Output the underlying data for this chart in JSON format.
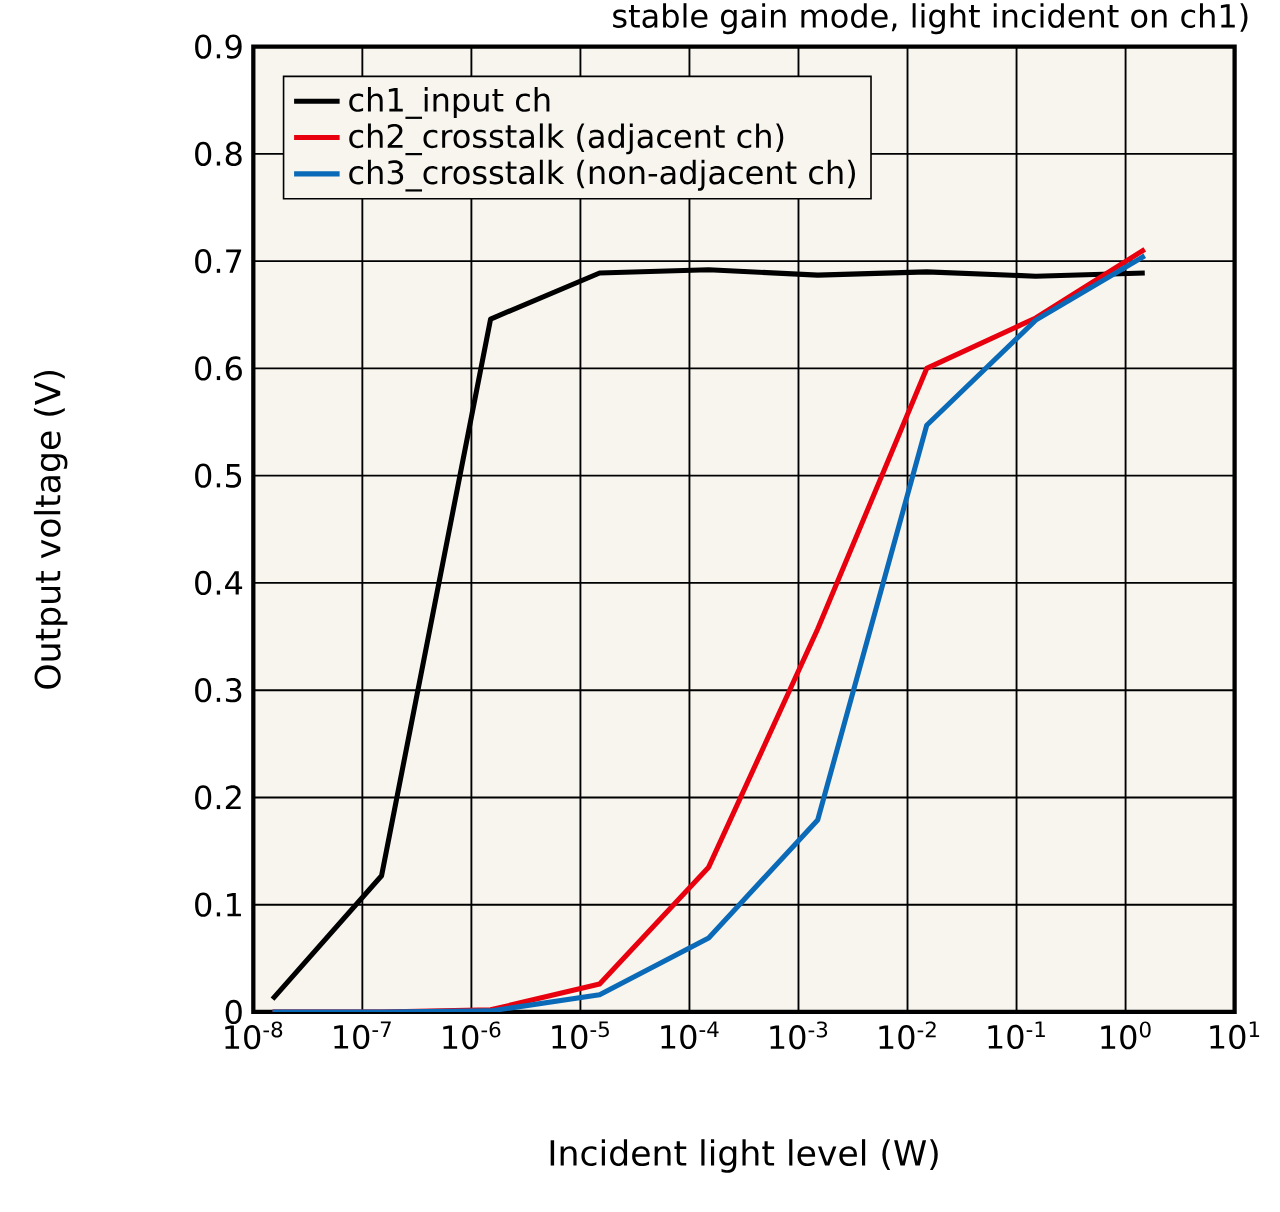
{
  "chart_data": {
    "type": "line",
    "title": "stable gain mode, light incident on ch1)",
    "xlabel": "Incident light level (W)",
    "ylabel": "Output voltage (V)",
    "log": "x",
    "grid": true,
    "legend": "top left",
    "marker": "none",
    "line_style": "solid",
    "xlim": [
      1e-08,
      10
    ],
    "ylim": [
      0,
      0.9
    ],
    "xticks": [
      {
        "value": 1e-08,
        "label": "10$^{-8}$"
      },
      {
        "value": 1e-07,
        "label": "10$^{-7}$"
      },
      {
        "value": 1e-06,
        "label": "10$^{-6}$"
      },
      {
        "value": 1e-05,
        "label": "10$^{-5}$"
      },
      {
        "value": 0.0001,
        "label": "10$^{-4}$"
      },
      {
        "value": 0.001,
        "label": "10$^{-3}$"
      },
      {
        "value": 0.01,
        "label": "10$^{-2}$"
      },
      {
        "value": 0.1,
        "label": "10$^{-1}$"
      },
      {
        "value": 1,
        "label": "10$^{0}$"
      },
      {
        "value": 10,
        "label": "10$^{1}$"
      }
    ],
    "yticks": [
      0,
      0.1,
      0.2,
      0.3,
      0.4,
      0.5,
      0.6,
      0.7,
      0.8,
      0.9
    ],
    "x": [
      1.5e-08,
      1.5e-07,
      1.5e-06,
      1.5e-05,
      0.00015,
      0.0015,
      0.015,
      0.15,
      1.5
    ],
    "series": [
      {
        "name": "ch1_input ch",
        "color": "#000000",
        "values": [
          0.012,
          0.127,
          0.646,
          0.689,
          0.692,
          0.687,
          0.69,
          0.686,
          0.689
        ]
      },
      {
        "name": "ch2_crosstalk (adjacent ch)",
        "color": "#e8000f",
        "values": [
          0,
          0,
          0.002,
          0.026,
          0.135,
          0.357,
          0.6,
          0.647,
          0.711
        ]
      },
      {
        "name": "ch3_crosstalk (non-adjacent ch)",
        "color": "#0a6ab8",
        "values": [
          0,
          0,
          0.001,
          0.016,
          0.069,
          0.179,
          0.547,
          0.645,
          0.705
        ]
      }
    ]
  }
}
